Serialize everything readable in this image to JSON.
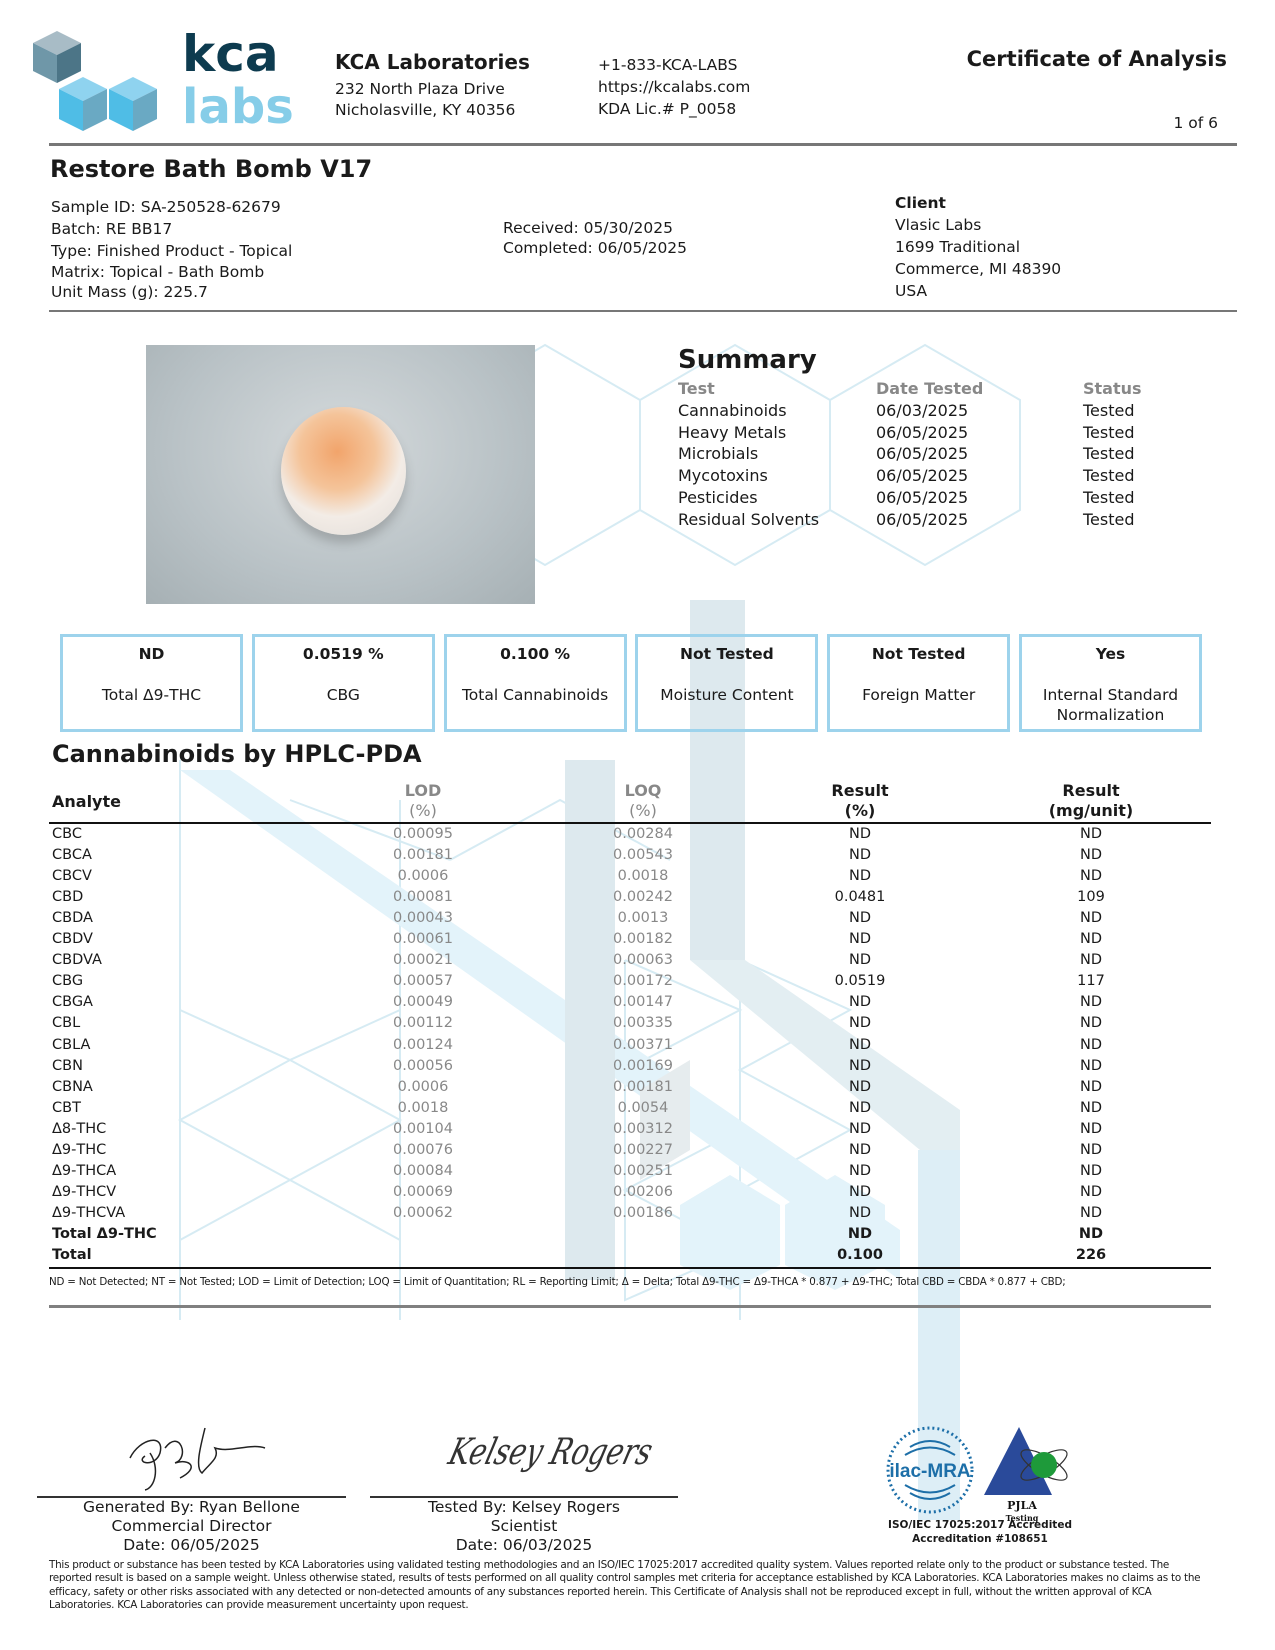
{
  "lab": {
    "logo_text_top": "kca",
    "logo_text_bottom": "labs",
    "name": "KCA Laboratories",
    "address1": "232 North Plaza Drive",
    "address2": "Nicholasville, KY 40356",
    "phone": "+1-833-KCA-LABS",
    "website": "https://kcalabs.com",
    "license": "KDA Lic.# P_0058"
  },
  "doc": {
    "title": "Certificate of Analysis",
    "page": "1 of 6"
  },
  "product": {
    "name": "Restore Bath Bomb V17",
    "sample_id": "Sample ID: SA-250528-62679",
    "batch": "Batch: RE BB17",
    "type": "Type: Finished Product - Topical",
    "matrix": "Matrix: Topical - Bath Bomb",
    "unit_mass": "Unit Mass (g): 225.7",
    "received": "Received: 05/30/2025",
    "completed": "Completed: 06/05/2025"
  },
  "client": {
    "label": "Client",
    "lines": [
      "Vlasic Labs",
      "1699 Traditional",
      "Commerce, MI 48390",
      "USA"
    ]
  },
  "summary": {
    "title": "Summary",
    "headers": [
      "Test",
      "Date Tested",
      "Status"
    ],
    "rows": [
      [
        "Cannabinoids",
        "06/03/2025",
        "Tested"
      ],
      [
        "Heavy Metals",
        "06/05/2025",
        "Tested"
      ],
      [
        "Microbials",
        "06/05/2025",
        "Tested"
      ],
      [
        "Mycotoxins",
        "06/05/2025",
        "Tested"
      ],
      [
        "Pesticides",
        "06/05/2025",
        "Tested"
      ],
      [
        "Residual Solvents",
        "06/05/2025",
        "Tested"
      ]
    ]
  },
  "highlights": [
    {
      "value": "ND",
      "label": "Total Δ9-THC"
    },
    {
      "value": "0.0519 %",
      "label": "CBG"
    },
    {
      "value": "0.100 %",
      "label": "Total Cannabinoids"
    },
    {
      "value": "Not Tested",
      "label": "Moisture Content"
    },
    {
      "value": "Not Tested",
      "label": "Foreign Matter"
    },
    {
      "value": "Yes",
      "label": "Internal Standard Normalization"
    }
  ],
  "cannabinoids": {
    "title": "Cannabinoids by HPLC-PDA",
    "headers": {
      "analyte": "Analyte",
      "lod": "LOD",
      "lod_unit": "(%)",
      "loq": "LOQ",
      "loq_unit": "(%)",
      "result_pct": "Result",
      "result_pct_unit": "(%)",
      "result_mg": "Result",
      "result_mg_unit": "(mg/unit)"
    },
    "rows": [
      [
        "CBC",
        "0.00095",
        "0.00284",
        "ND",
        "ND"
      ],
      [
        "CBCA",
        "0.00181",
        "0.00543",
        "ND",
        "ND"
      ],
      [
        "CBCV",
        "0.0006",
        "0.0018",
        "ND",
        "ND"
      ],
      [
        "CBD",
        "0.00081",
        "0.00242",
        "0.0481",
        "109"
      ],
      [
        "CBDA",
        "0.00043",
        "0.0013",
        "ND",
        "ND"
      ],
      [
        "CBDV",
        "0.00061",
        "0.00182",
        "ND",
        "ND"
      ],
      [
        "CBDVA",
        "0.00021",
        "0.00063",
        "ND",
        "ND"
      ],
      [
        "CBG",
        "0.00057",
        "0.00172",
        "0.0519",
        "117"
      ],
      [
        "CBGA",
        "0.00049",
        "0.00147",
        "ND",
        "ND"
      ],
      [
        "CBL",
        "0.00112",
        "0.00335",
        "ND",
        "ND"
      ],
      [
        "CBLA",
        "0.00124",
        "0.00371",
        "ND",
        "ND"
      ],
      [
        "CBN",
        "0.00056",
        "0.00169",
        "ND",
        "ND"
      ],
      [
        "CBNA",
        "0.0006",
        "0.00181",
        "ND",
        "ND"
      ],
      [
        "CBT",
        "0.0018",
        "0.0054",
        "ND",
        "ND"
      ],
      [
        "Δ8-THC",
        "0.00104",
        "0.00312",
        "ND",
        "ND"
      ],
      [
        "Δ9-THC",
        "0.00076",
        "0.00227",
        "ND",
        "ND"
      ],
      [
        "Δ9-THCA",
        "0.00084",
        "0.00251",
        "ND",
        "ND"
      ],
      [
        "Δ9-THCV",
        "0.00069",
        "0.00206",
        "ND",
        "ND"
      ],
      [
        "Δ9-THCVA",
        "0.00062",
        "0.00186",
        "ND",
        "ND"
      ]
    ],
    "totals": [
      [
        "Total Δ9-THC",
        "",
        "",
        "ND",
        "ND"
      ],
      [
        "Total",
        "",
        "",
        "0.100",
        "226"
      ]
    ],
    "footnote": "ND = Not Detected; NT = Not Tested; LOD = Limit of Detection; LOQ = Limit of Quantitation; RL = Reporting Limit; Δ = Delta; Total Δ9-THC = Δ9-THCA * 0.877 + Δ9-THC; Total CBD = CBDA * 0.877 + CBD;"
  },
  "signatures": [
    {
      "line1": "Generated By: Ryan Bellone",
      "line2": "Commercial Director",
      "line3": "Date: 06/05/2025"
    },
    {
      "line1": "Tested By: Kelsey Rogers",
      "line2": "Scientist",
      "line3": "Date: 06/03/2025",
      "script": "Kelsey Rogers"
    }
  ],
  "accreditation": {
    "ilac_text": "ilac-MRA",
    "pjla_text": "PJLA",
    "pjla_sub": "Testing",
    "line1": "ISO/IEC 17025:2017 Accredited",
    "line2": "Accreditation #108651"
  },
  "disclaimer": "This product or substance has been tested by KCA Laboratories using validated testing methodologies and an ISO/IEC 17025:2017 accredited quality system. Values reported relate only to the product or substance tested. The reported result is based on a sample weight. Unless otherwise stated, results of tests performed on all quality control samples met criteria for acceptance established by KCA Laboratories. KCA Laboratories makes no claims as to the efficacy, safety or other risks associated with any detected or non-detected amounts of any substances reported herein. This Certificate of Analysis shall not be reproduced except in full, without the written approval of KCA Laboratories. KCA Laboratories can provide measurement uncertainty upon request.",
  "colors": {
    "logo_dark": "#0d3b4f",
    "logo_light": "#86cde8",
    "box_border": "#9dd3ec"
  }
}
